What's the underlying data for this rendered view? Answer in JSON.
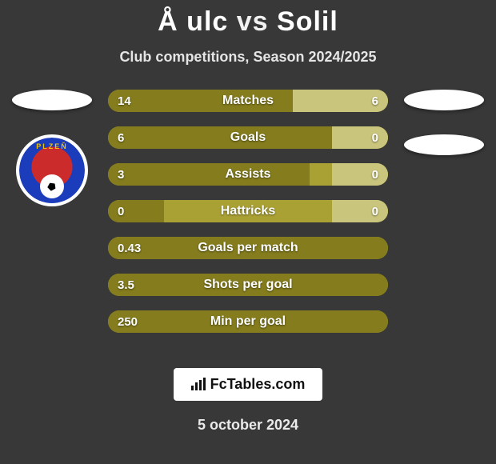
{
  "title": {
    "left": "Å ulc",
    "vs": "vs",
    "right": "Solil"
  },
  "subtitle": "Club competitions, Season 2024/2025",
  "colors": {
    "bg_page": "#383838",
    "bar_track": "#aaa134",
    "left": "#857d1d",
    "right": "#c9c57c",
    "text": "#ffffff"
  },
  "left_side": {
    "oval_label": "player-1-placeholder",
    "club_name": "PLZEŇ",
    "badge_accent": "#f0c400"
  },
  "right_side": {
    "oval1_label": "player-2-placeholder",
    "oval2_label": "club-2-placeholder"
  },
  "stats": [
    {
      "label": "Matches",
      "left_value": "14",
      "right_value": "6",
      "left_pct": 66,
      "right_pct": 34
    },
    {
      "label": "Goals",
      "left_value": "6",
      "right_value": "0",
      "left_pct": 80,
      "right_pct": 20
    },
    {
      "label": "Assists",
      "left_value": "3",
      "right_value": "0",
      "left_pct": 72,
      "right_pct": 20
    },
    {
      "label": "Hattricks",
      "left_value": "0",
      "right_value": "0",
      "left_pct": 20,
      "right_pct": 20
    },
    {
      "label": "Goals per match",
      "left_value": "0.43",
      "right_value": "",
      "left_pct": 100,
      "right_pct": 0
    },
    {
      "label": "Shots per goal",
      "left_value": "3.5",
      "right_value": "",
      "left_pct": 100,
      "right_pct": 0
    },
    {
      "label": "Min per goal",
      "left_value": "250",
      "right_value": "",
      "left_pct": 100,
      "right_pct": 0
    }
  ],
  "brand": {
    "label": "FcTables.com"
  },
  "date": "5 october 2024"
}
